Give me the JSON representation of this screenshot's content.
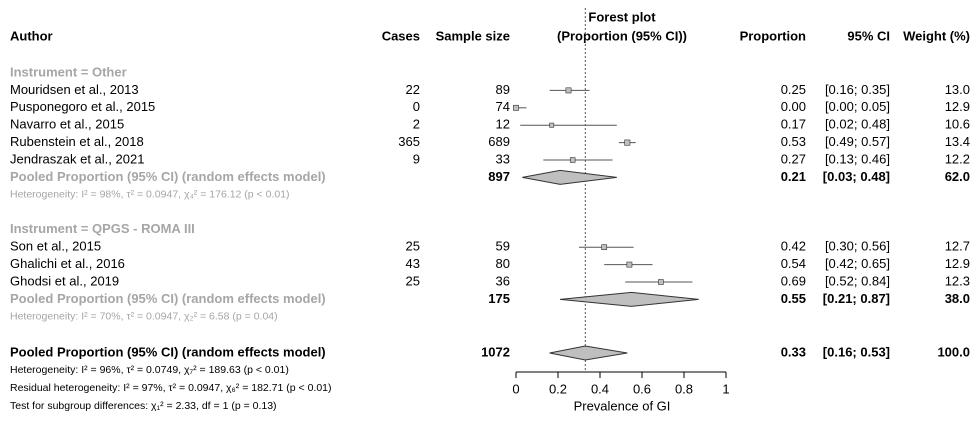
{
  "chart_data": {
    "type": "forest",
    "title": "Forest plot",
    "subtitle": "(Proportion (95% CI))",
    "columns": {
      "author": "Author",
      "cases": "Cases",
      "sample_size": "Sample size",
      "proportion": "Proportion",
      "ci": "95% CI",
      "weight": "Weight (%)"
    },
    "x_label": "Prevalence of GI",
    "xlim": [
      0,
      1
    ],
    "xticks": [
      0,
      0.2,
      0.4,
      0.6,
      0.8,
      1
    ],
    "groups": [
      {
        "name": "Instrument = Other",
        "studies": [
          {
            "author": "Mouridsen et al., 2013",
            "cases": 22,
            "sample_size": 89,
            "proportion": 0.25,
            "proportion_label": "0.25",
            "ci": [
              0.16,
              0.35
            ],
            "ci_label": "[0.16; 0.35]",
            "weight": 13.0,
            "weight_label": "13.0"
          },
          {
            "author": "Pusponegoro et al., 2015",
            "cases": 0,
            "sample_size": 74,
            "proportion": 0.0,
            "proportion_label": "0.00",
            "ci": [
              0.0,
              0.05
            ],
            "ci_label": "[0.00; 0.05]",
            "weight": 12.9,
            "weight_label": "12.9"
          },
          {
            "author": "Navarro et al., 2015",
            "cases": 2,
            "sample_size": 12,
            "proportion": 0.17,
            "proportion_label": "0.17",
            "ci": [
              0.02,
              0.48
            ],
            "ci_label": "[0.02; 0.48]",
            "weight": 10.6,
            "weight_label": "10.6"
          },
          {
            "author": "Rubenstein et al., 2018",
            "cases": 365,
            "sample_size": 689,
            "proportion": 0.53,
            "proportion_label": "0.53",
            "ci": [
              0.49,
              0.57
            ],
            "ci_label": "[0.49; 0.57]",
            "weight": 13.4,
            "weight_label": "13.4"
          },
          {
            "author": "Jendraszak et al., 2021",
            "cases": 9,
            "sample_size": 33,
            "proportion": 0.27,
            "proportion_label": "0.27",
            "ci": [
              0.13,
              0.46
            ],
            "ci_label": "[0.13; 0.46]",
            "weight": 12.2,
            "weight_label": "12.2"
          }
        ],
        "pooled": {
          "label": "Pooled Proportion (95% CI) (random effects model)",
          "sample_size": 897,
          "proportion": 0.21,
          "proportion_label": "0.21",
          "ci": [
            0.03,
            0.48
          ],
          "ci_label": "[0.03; 0.48]",
          "weight": 62.0,
          "weight_label": "62.0"
        },
        "heterogeneity": "Heterogeneity: I² = 98%, τ² = 0.0947, χ₄² = 176.12 (p < 0.01)"
      },
      {
        "name": "Instrument = QPGS - ROMA III",
        "studies": [
          {
            "author": "Son et al., 2015",
            "cases": 25,
            "sample_size": 59,
            "proportion": 0.42,
            "proportion_label": "0.42",
            "ci": [
              0.3,
              0.56
            ],
            "ci_label": "[0.30; 0.56]",
            "weight": 12.7,
            "weight_label": "12.7"
          },
          {
            "author": "Ghalichi et al., 2016",
            "cases": 43,
            "sample_size": 80,
            "proportion": 0.54,
            "proportion_label": "0.54",
            "ci": [
              0.42,
              0.65
            ],
            "ci_label": "[0.42; 0.65]",
            "weight": 12.9,
            "weight_label": "12.9"
          },
          {
            "author": "Ghodsi et al., 2019",
            "cases": 25,
            "sample_size": 36,
            "proportion": 0.69,
            "proportion_label": "0.69",
            "ci": [
              0.52,
              0.84
            ],
            "ci_label": "[0.52; 0.84]",
            "weight": 12.3,
            "weight_label": "12.3"
          }
        ],
        "pooled": {
          "label": "Pooled Proportion (95% CI) (random effects model)",
          "sample_size": 175,
          "proportion": 0.55,
          "proportion_label": "0.55",
          "ci": [
            0.21,
            0.87
          ],
          "ci_label": "[0.21; 0.87]",
          "weight": 38.0,
          "weight_label": "38.0"
        },
        "heterogeneity": "Heterogeneity: I² = 70%, τ² = 0.0947, χ₂² = 6.58 (p = 0.04)"
      }
    ],
    "overall": {
      "label": "Pooled Proportion (95% CI) (random effects model)",
      "sample_size": 1072,
      "proportion": 0.33,
      "proportion_label": "0.33",
      "ci": [
        0.16,
        0.53
      ],
      "ci_label": "[0.16; 0.53]",
      "weight": 100.0,
      "weight_label": "100.0"
    },
    "notes": [
      "Heterogeneity: I² = 96%, τ² = 0.0749, χ₇² = 189.63 (p < 0.01)",
      "Residual heterogeneity: I² = 97%, τ² = 0.0947, χ₆² = 182.71 (p < 0.01)",
      "Test for subgroup differences: χ₁² = 2.33, df = 1 (p = 0.13)"
    ]
  }
}
